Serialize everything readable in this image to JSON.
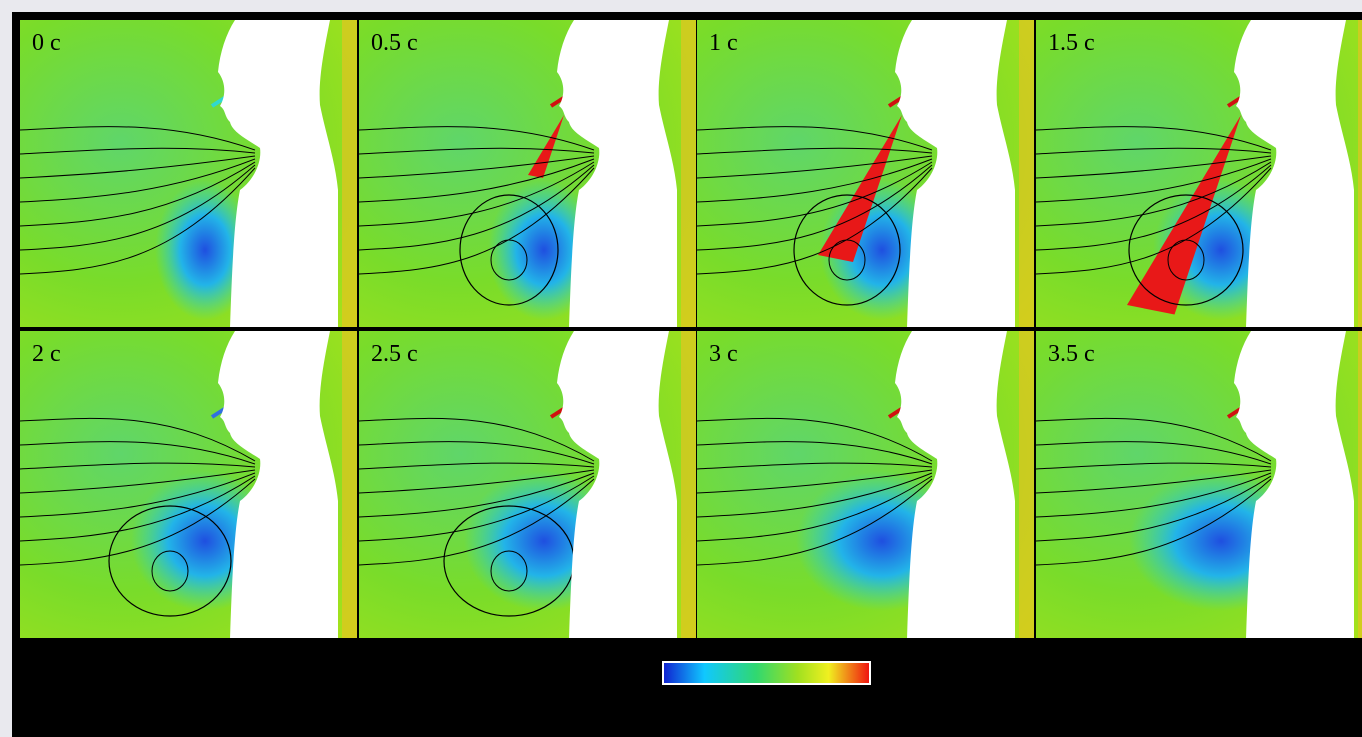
{
  "panels": [
    {
      "label": "0 c"
    },
    {
      "label": "0.5 c"
    },
    {
      "label": "1 c"
    },
    {
      "label": "1.5 c"
    },
    {
      "label": "2 c"
    },
    {
      "label": "2.5 c"
    },
    {
      "label": "3 c"
    },
    {
      "label": "3.5 c"
    }
  ]
}
